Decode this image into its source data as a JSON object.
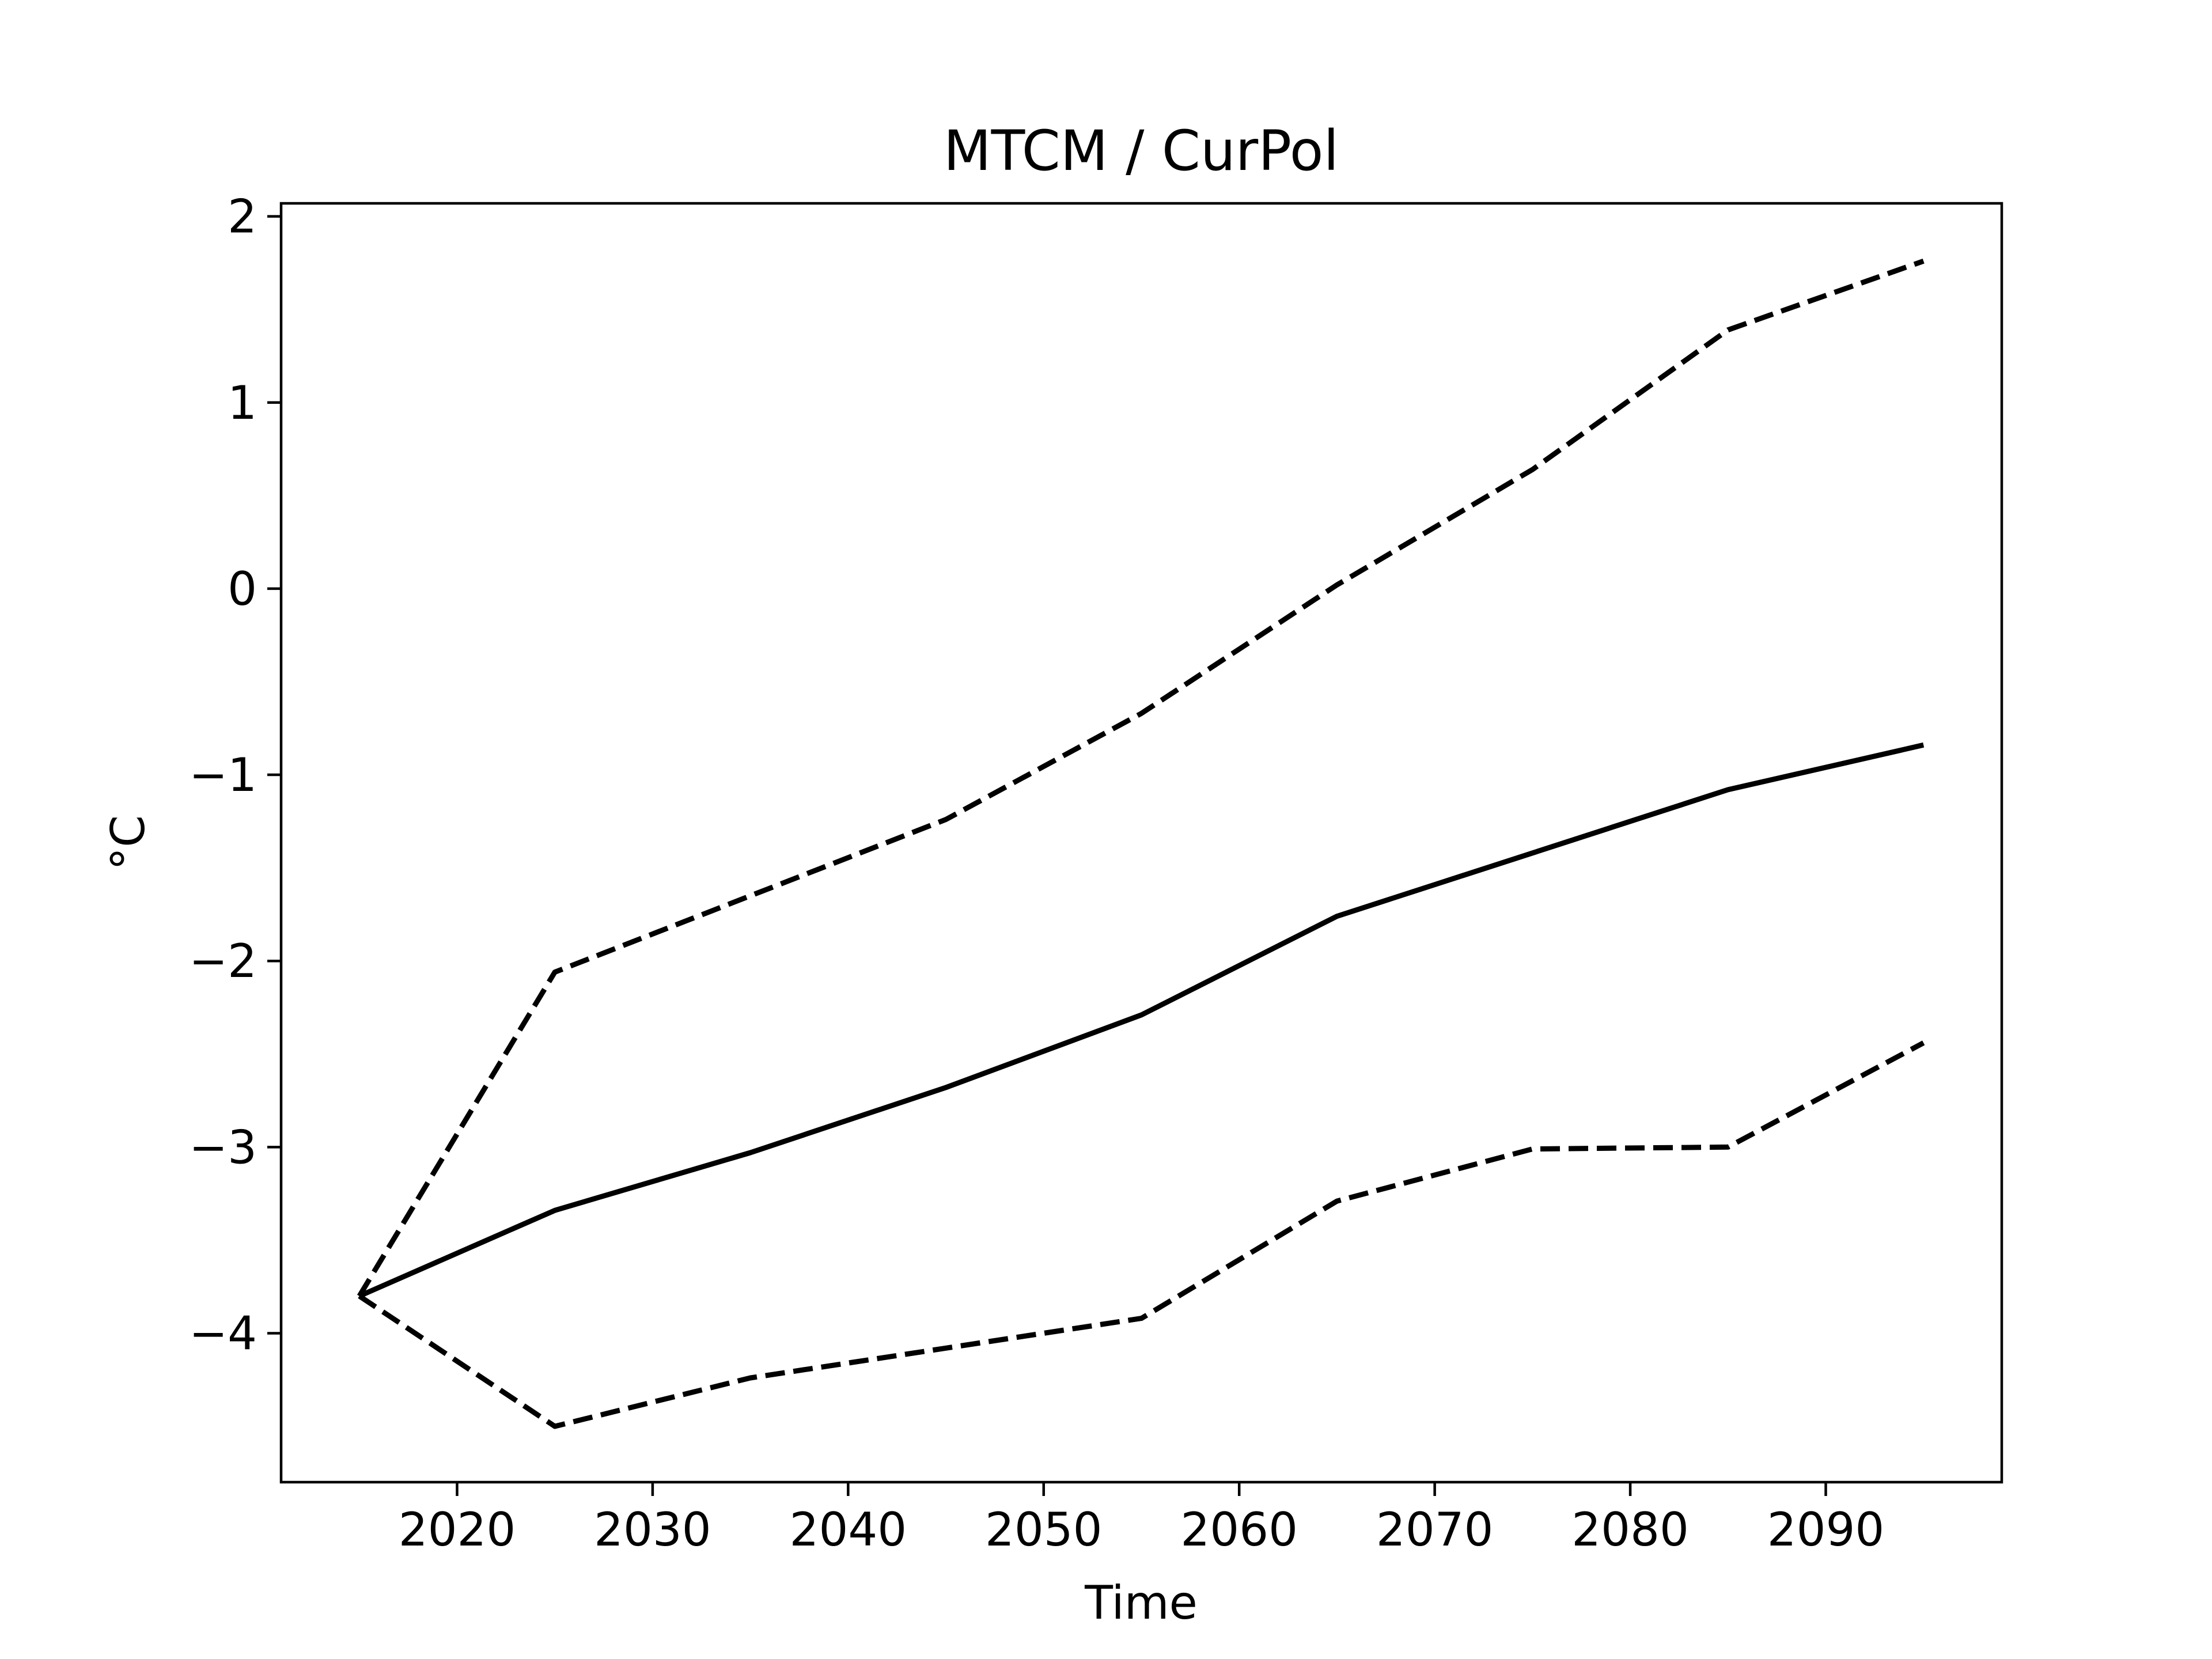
{
  "chart_data": {
    "type": "line",
    "title": "MTCM / CurPol",
    "xlabel": "Time",
    "ylabel": "°C",
    "xlim": [
      2011,
      2099
    ],
    "ylim": [
      -4.8,
      2.07
    ],
    "x_ticks": [
      2020,
      2030,
      2040,
      2050,
      2060,
      2070,
      2080,
      2090
    ],
    "y_ticks": [
      2,
      1,
      0,
      -1,
      -2,
      -3,
      -4
    ],
    "y_tick_labels": [
      "2",
      "1",
      "0",
      "−1",
      "−2",
      "−3",
      "−4"
    ],
    "grid": false,
    "line_color": "#000000",
    "x": [
      2015,
      2025,
      2035,
      2045,
      2055,
      2065,
      2075,
      2085,
      2095
    ],
    "series": [
      {
        "style": "solid",
        "values": [
          -3.8,
          -3.34,
          -3.03,
          -2.68,
          -2.29,
          -1.76,
          -1.42,
          -1.08,
          -0.84
        ]
      },
      {
        "style": "dashed",
        "values": [
          -3.8,
          -2.06,
          -1.65,
          -1.24,
          -0.67,
          0.02,
          0.64,
          1.39,
          1.76
        ]
      },
      {
        "style": "dashed",
        "values": [
          -3.8,
          -4.5,
          -4.24,
          -4.08,
          -3.92,
          -3.29,
          -3.01,
          -3.0,
          -2.44
        ]
      }
    ]
  }
}
